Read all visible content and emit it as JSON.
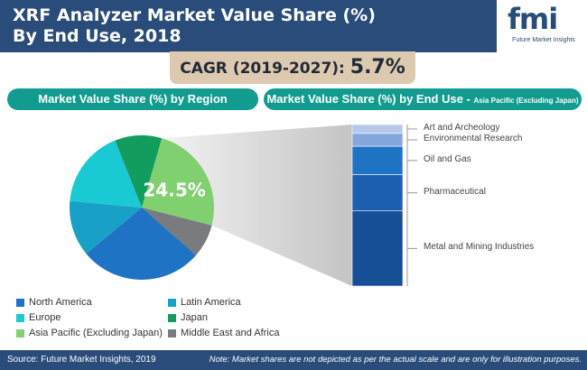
{
  "header": {
    "title_line1": "XRF Analyzer Market Value Share (%)",
    "title_line2": "By End Use, 2018"
  },
  "logo": {
    "mark": "fmi",
    "subtitle": "Future Market Insights"
  },
  "cagr": {
    "label": "CAGR (2019-2027): ",
    "value": "5.7%"
  },
  "sections": {
    "left": "Market Value Share (%) by Region",
    "right_main": "Market Value Share (%) by End Use - ",
    "right_sub": "Asia Pacific (Excluding Japan)"
  },
  "chart_data": [
    {
      "type": "pie",
      "title": "Market Value Share (%) by Region",
      "highlight_label": "24.5%",
      "slices": [
        {
          "name": "North America",
          "value": 27.5,
          "color": "#1f73c4"
        },
        {
          "name": "Latin America",
          "value": 12.5,
          "color": "#19a0c6"
        },
        {
          "name": "Europe",
          "value": 17.5,
          "color": "#19c9d3"
        },
        {
          "name": "Japan",
          "value": 10.5,
          "color": "#129c5e"
        },
        {
          "name": "Asia Pacific (Excluding Japan)",
          "value": 24.5,
          "color": "#80d06f"
        },
        {
          "name": "Middle East and Africa",
          "value": 7.5,
          "color": "#797b7e"
        }
      ],
      "legend": "bottom"
    },
    {
      "type": "bar",
      "title": "Market Value Share (%) by End Use - Asia Pacific (Excluding Japan)",
      "stacked": true,
      "segments": [
        {
          "name": "Art and Archeology",
          "value": 5.5,
          "color": "#b6c9ea"
        },
        {
          "name": "Environmental Research",
          "value": 8,
          "color": "#86a7de"
        },
        {
          "name": "Oil and Gas",
          "value": 17.5,
          "color": "#1f73c4"
        },
        {
          "name": "Pharmaceutical",
          "value": 22.5,
          "color": "#1c5fb0"
        },
        {
          "name": "Metal and Mining Industries",
          "value": 46.5,
          "color": "#164f96"
        }
      ]
    }
  ],
  "footer": {
    "source": "Source: Future Market Insights, 2019",
    "note": "Note: Market shares are not depicted as per the actual scale and are only for illustration purposes."
  }
}
